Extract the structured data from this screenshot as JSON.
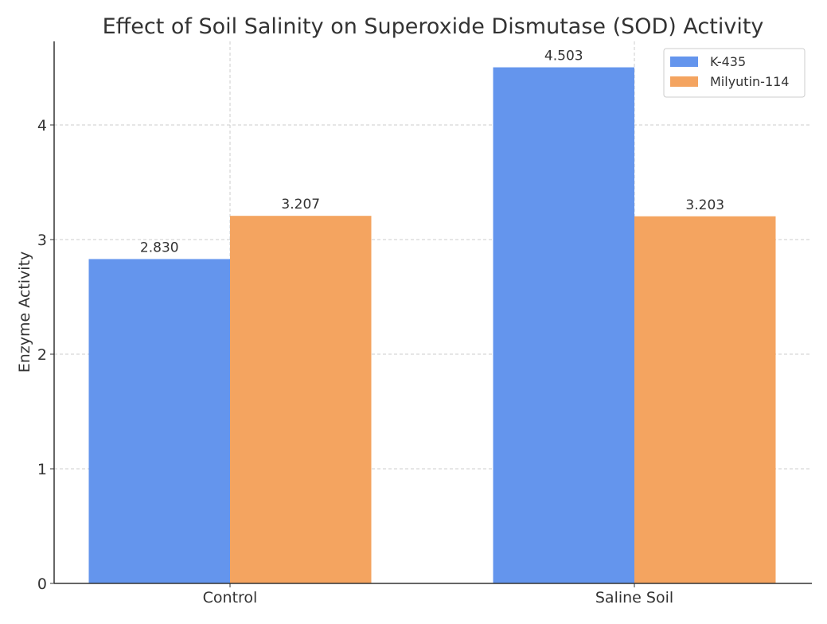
{
  "chart_data": {
    "type": "bar",
    "title": "Effect of Soil Salinity on Superoxide Dismutase (SOD) Activity",
    "xlabel": "",
    "ylabel": "Enzyme Activity",
    "categories": [
      "Control",
      "Saline Soil"
    ],
    "series": [
      {
        "name": "K-435",
        "color": "#6495ED",
        "values": [
          2.83,
          4.503
        ],
        "labels": [
          "2.830",
          "4.503"
        ]
      },
      {
        "name": "Milyutin-114",
        "color": "#F4A460",
        "values": [
          3.207,
          3.203
        ],
        "labels": [
          "3.207",
          "3.203"
        ]
      }
    ],
    "ylim": [
      0,
      4.73
    ],
    "yticks": [
      0,
      1,
      2,
      3,
      4
    ],
    "ytick_labels": [
      "0",
      "1",
      "2",
      "3",
      "4"
    ],
    "grid": true,
    "legend": {
      "placement": "top-right",
      "entries": [
        "K-435",
        "Milyutin-114"
      ]
    }
  }
}
